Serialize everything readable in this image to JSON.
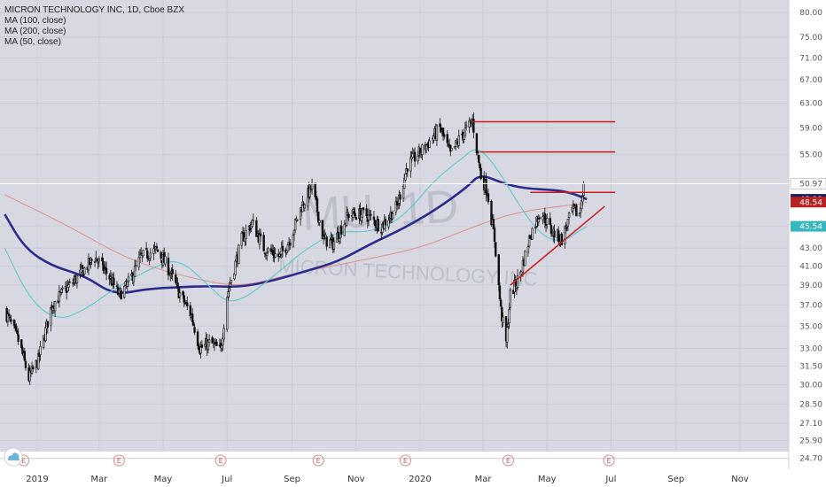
{
  "legend": {
    "title": "MICRON TECHNOLOGY INC, 1D, Cboe BZX",
    "lines": [
      "MA (100, close)",
      "MA (200, close)",
      "MA (50, close)"
    ]
  },
  "watermark": {
    "ticker": "MU, 1D",
    "name": "MICRON TECHNOLOGY INC"
  },
  "colors": {
    "background": "#d7d8e1",
    "price_axis_bg": "#ffffff",
    "candle": "#111111",
    "ma100": "#e0908a",
    "ma200": "#2c2c8c",
    "ma50": "#60c8cc",
    "resistance": "#c81c1c",
    "badge_dark": "#1e1e5c",
    "badge_red": "#b52222",
    "badge_teal": "#37b6bd"
  },
  "price_axis": {
    "ticks": [
      "80.00",
      "75.00",
      "71.00",
      "67.00",
      "63.00",
      "59.00",
      "55.00",
      "50.97",
      "45.58",
      "43.00",
      "41.00",
      "39.00",
      "37.00",
      "35.00",
      "33.00",
      "31.50",
      "30.00",
      "28.50",
      "27.10",
      "25.90",
      "24.70"
    ],
    "badges": [
      {
        "value": "48.90",
        "style": "badge_dark"
      },
      {
        "value": "48.54",
        "style": "badge_red"
      },
      {
        "value": "45.54",
        "style": "badge_teal"
      }
    ]
  },
  "x_axis": {
    "labels": [
      "2019",
      "Mar",
      "May",
      "Jul",
      "Sep",
      "Nov",
      "2020",
      "Mar",
      "May",
      "Jul",
      "Sep",
      "Nov"
    ]
  },
  "earnings_markers": [
    "E",
    "E",
    "E",
    "E",
    "E",
    "E",
    "E"
  ],
  "chart_data": {
    "type": "candlestick",
    "title": "MICRON TECHNOLOGY INC, 1D, Cboe BZX",
    "period": "1D",
    "last_price": 50.97,
    "y_scale": "log",
    "ylim": [
      24.7,
      80.0
    ],
    "x_range": [
      "2018-12-01",
      "2020-12-31"
    ],
    "close_path": [
      [
        "2018-12-01",
        36.5
      ],
      [
        "2018-12-08",
        35.0
      ],
      [
        "2018-12-15",
        33.5
      ],
      [
        "2018-12-24",
        30.5
      ],
      [
        "2019-01-02",
        32.0
      ],
      [
        "2019-01-15",
        37.0
      ],
      [
        "2019-01-25",
        38.2
      ],
      [
        "2019-02-10",
        40.0
      ],
      [
        "2019-02-25",
        42.0
      ],
      [
        "2019-03-10",
        40.0
      ],
      [
        "2019-03-20",
        38.0
      ],
      [
        "2019-03-28",
        39.0
      ],
      [
        "2019-04-10",
        42.0
      ],
      [
        "2019-04-25",
        42.8
      ],
      [
        "2019-05-05",
        41.0
      ],
      [
        "2019-05-15",
        38.5
      ],
      [
        "2019-05-28",
        36.0
      ],
      [
        "2019-06-05",
        33.0
      ],
      [
        "2019-06-15",
        33.5
      ],
      [
        "2019-06-25",
        32.8
      ],
      [
        "2019-07-01",
        38.0
      ],
      [
        "2019-07-15",
        44.0
      ],
      [
        "2019-07-25",
        46.0
      ],
      [
        "2019-08-05",
        43.0
      ],
      [
        "2019-08-20",
        42.0
      ],
      [
        "2019-08-30",
        44.0
      ],
      [
        "2019-09-10",
        48.0
      ],
      [
        "2019-09-20",
        50.5
      ],
      [
        "2019-10-01",
        44.0
      ],
      [
        "2019-10-10",
        43.5
      ],
      [
        "2019-10-25",
        47.0
      ],
      [
        "2019-11-10",
        47.0
      ],
      [
        "2019-11-25",
        45.5
      ],
      [
        "2019-12-10",
        48.0
      ],
      [
        "2019-12-20",
        53.5
      ],
      [
        "2020-01-05",
        56.0
      ],
      [
        "2020-01-20",
        59.0
      ],
      [
        "2020-01-30",
        55.0
      ],
      [
        "2020-02-10",
        58.0
      ],
      [
        "2020-02-20",
        60.0
      ],
      [
        "2020-02-28",
        52.0
      ],
      [
        "2020-03-05",
        50.0
      ],
      [
        "2020-03-12",
        44.0
      ],
      [
        "2020-03-18",
        36.5
      ],
      [
        "2020-03-23",
        33.5
      ],
      [
        "2020-03-27",
        38.0
      ],
      [
        "2020-04-05",
        40.0
      ],
      [
        "2020-04-15",
        44.5
      ],
      [
        "2020-04-25",
        47.5
      ],
      [
        "2020-05-05",
        45.0
      ],
      [
        "2020-05-15",
        44.0
      ],
      [
        "2020-05-25",
        47.5
      ],
      [
        "2020-06-01",
        47.0
      ],
      [
        "2020-06-05",
        50.97
      ]
    ],
    "moving_averages": [
      {
        "name": "MA (100, close)",
        "points": [
          [
            "2018-12-01",
            49.5
          ],
          [
            "2019-02-01",
            45.5
          ],
          [
            "2019-04-01",
            41.5
          ],
          [
            "2019-06-01",
            39.6
          ],
          [
            "2019-07-15",
            38.8
          ],
          [
            "2019-09-01",
            40.2
          ],
          [
            "2019-11-01",
            41.5
          ],
          [
            "2020-01-01",
            43.0
          ],
          [
            "2020-02-15",
            45.2
          ],
          [
            "2020-04-01",
            47.3
          ],
          [
            "2020-06-01",
            48.3
          ],
          [
            "2020-06-08",
            48.54
          ]
        ]
      },
      {
        "name": "MA (200, close)",
        "points": [
          [
            "2018-12-01",
            47.0
          ],
          [
            "2018-12-20",
            43.0
          ],
          [
            "2019-01-15",
            41.0
          ],
          [
            "2019-02-15",
            40.0
          ],
          [
            "2019-03-15",
            38.0
          ],
          [
            "2019-04-15",
            38.6
          ],
          [
            "2019-05-15",
            38.8
          ],
          [
            "2019-06-15",
            38.9
          ],
          [
            "2019-07-15",
            38.8
          ],
          [
            "2019-08-15",
            39.5
          ],
          [
            "2019-09-15",
            40.5
          ],
          [
            "2019-10-15",
            41.5
          ],
          [
            "2019-11-15",
            43.5
          ],
          [
            "2019-12-15",
            45.2
          ],
          [
            "2020-01-15",
            47.5
          ],
          [
            "2020-02-15",
            50.5
          ],
          [
            "2020-02-27",
            52.3
          ],
          [
            "2020-03-20",
            51.0
          ],
          [
            "2020-04-10",
            50.3
          ],
          [
            "2020-05-10",
            50.1
          ],
          [
            "2020-05-25",
            49.7
          ],
          [
            "2020-06-08",
            48.9
          ]
        ]
      },
      {
        "name": "MA (50, close)",
        "points": [
          [
            "2018-12-01",
            43.0
          ],
          [
            "2018-12-25",
            37.5
          ],
          [
            "2019-01-20",
            35.5
          ],
          [
            "2019-02-15",
            36.5
          ],
          [
            "2019-03-15",
            38.6
          ],
          [
            "2019-04-15",
            40.5
          ],
          [
            "2019-05-15",
            42.0
          ],
          [
            "2019-06-15",
            38.8
          ],
          [
            "2019-07-01",
            37.2
          ],
          [
            "2019-07-20",
            37.8
          ],
          [
            "2019-08-15",
            40.0
          ],
          [
            "2019-09-15",
            43.0
          ],
          [
            "2019-10-15",
            45.0
          ],
          [
            "2019-11-15",
            44.8
          ],
          [
            "2019-12-15",
            46.5
          ],
          [
            "2020-01-15",
            51.5
          ],
          [
            "2020-02-10",
            54.5
          ],
          [
            "2020-02-25",
            56.3
          ],
          [
            "2020-03-15",
            53.0
          ],
          [
            "2020-04-05",
            48.0
          ],
          [
            "2020-04-25",
            44.5
          ],
          [
            "2020-05-15",
            43.6
          ],
          [
            "2020-06-01",
            45.0
          ],
          [
            "2020-06-08",
            45.54
          ]
        ]
      }
    ],
    "annotations": [
      {
        "type": "horizontal",
        "y": 60.0,
        "x_start": "2020-02-20",
        "x_end": "2020-07-05"
      },
      {
        "type": "horizontal",
        "y": 55.4,
        "x_start": "2020-02-27",
        "x_end": "2020-07-05"
      },
      {
        "type": "horizontal",
        "y": 49.8,
        "x_start": "2020-04-15",
        "x_end": "2020-07-05"
      },
      {
        "type": "trendline",
        "points": [
          [
            "2020-03-27",
            39.0
          ],
          [
            "2020-06-25",
            48.0
          ]
        ]
      }
    ]
  }
}
